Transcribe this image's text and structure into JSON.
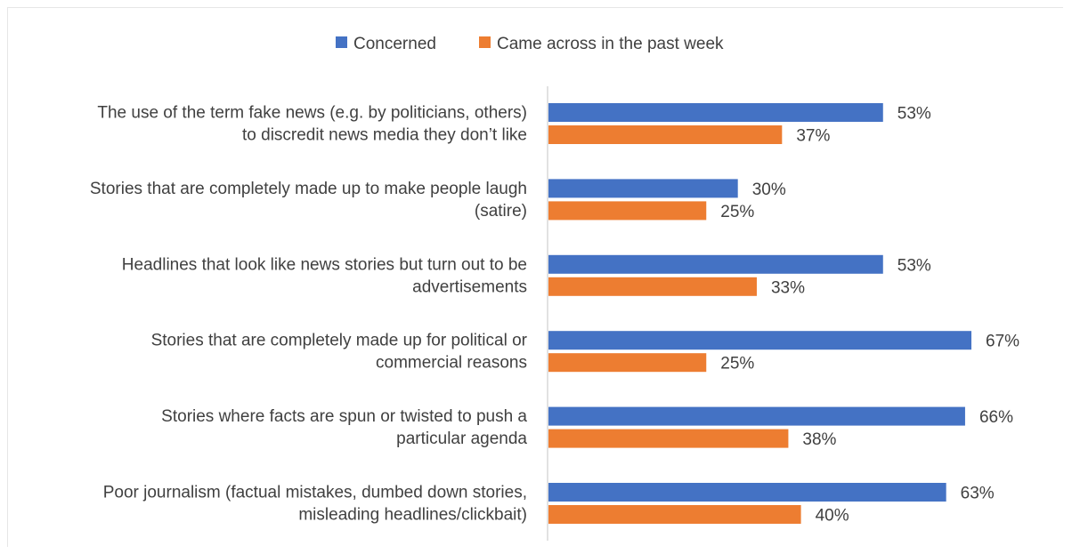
{
  "chart_data": {
    "type": "bar",
    "orientation": "horizontal",
    "title": "",
    "xlabel": "",
    "ylabel": "",
    "value_format": "percent",
    "grid": false,
    "legend_position": "top",
    "categories": [
      [
        "The use of the term fake news (e.g. by politicians, others)",
        "to discredit news media they don’t like"
      ],
      [
        "Stories that are completely made up to make people laugh",
        "(satire)"
      ],
      [
        "Headlines that look like news stories but turn out to be",
        "advertisements"
      ],
      [
        "Stories that are completely made up for political or",
        "commercial reasons"
      ],
      [
        "Stories where facts are spun or twisted to push a",
        "particular agenda"
      ],
      [
        "Poor journalism (factual mistakes, dumbed down stories,",
        "misleading headlines/clickbait)"
      ]
    ],
    "series": [
      {
        "name": "Concerned",
        "color": "#4472C4",
        "values": [
          53,
          30,
          53,
          67,
          66,
          63
        ],
        "labels": [
          "53%",
          "30%",
          "53%",
          "67%",
          "66%",
          "63%"
        ]
      },
      {
        "name": "Came across in the past week",
        "color": "#ED7D31",
        "values": [
          37,
          25,
          33,
          25,
          38,
          40
        ],
        "labels": [
          "37%",
          "25%",
          "33%",
          "25%",
          "38%",
          "40%"
        ]
      }
    ],
    "xlim": [
      0,
      70
    ]
  }
}
